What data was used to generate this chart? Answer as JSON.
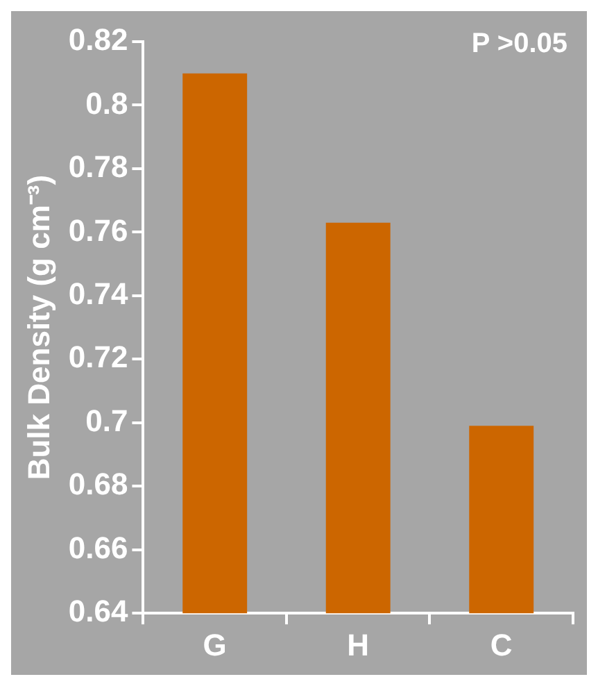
{
  "chart_data": {
    "type": "bar",
    "ylabel": "Bulk Density (g cm⁻³)",
    "categories": [
      "G",
      "H",
      "C"
    ],
    "values": [
      0.81,
      0.763,
      0.699
    ],
    "color": "#cc6600",
    "ylim": [
      0.64,
      0.82
    ],
    "yticks": [
      0.64,
      0.66,
      0.68,
      0.7,
      0.72,
      0.74,
      0.76,
      0.78,
      0.8,
      0.82
    ],
    "grid": false,
    "legend": false,
    "annotations": [
      "P >0.05"
    ]
  }
}
